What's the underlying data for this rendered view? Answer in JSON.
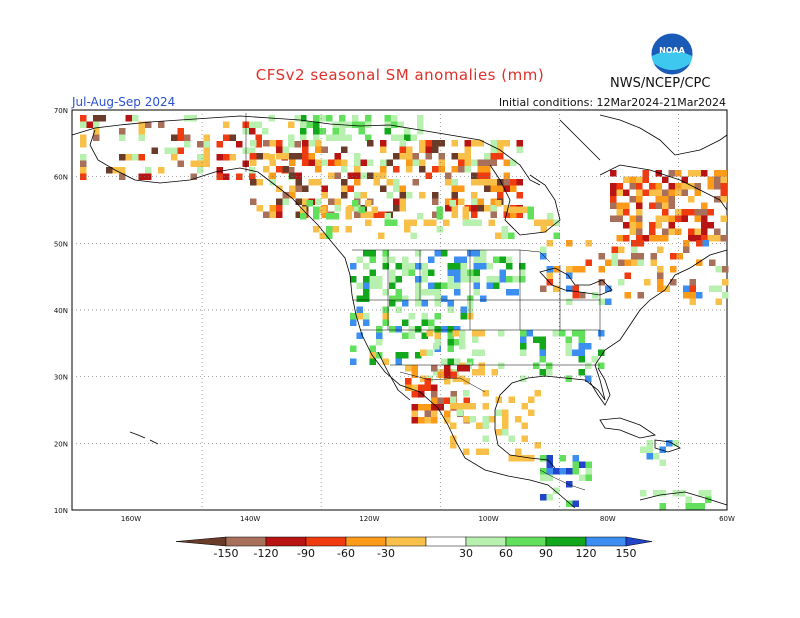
{
  "header": {
    "title": "CFSv2 seasonal SM anomalies (mm)",
    "org": "NWS/NCEP/CPC",
    "logo_text": "NOAA",
    "season": "Jul-Aug-Sep 2024",
    "initial_conditions": "Initial conditions: 12Mar2024-21Mar2024"
  },
  "axes": {
    "lat_labels": [
      "70N",
      "60N",
      "50N",
      "40N",
      "30N",
      "20N",
      "10N"
    ],
    "lon_labels": [
      "160W",
      "140W",
      "120W",
      "100W",
      "80W",
      "60W"
    ]
  },
  "legend": {
    "labels": [
      "-150",
      "-120",
      "-90",
      "-60",
      "-30",
      "30",
      "60",
      "90",
      "120",
      "150"
    ],
    "colors": [
      "#6b3b2a",
      "#a8705a",
      "#b81414",
      "#f03a10",
      "#fc9a1a",
      "#f8c048",
      "#ffffff",
      "#b8f0b0",
      "#62e05c",
      "#13a81c",
      "#3c8ef0",
      "#2244c8"
    ]
  },
  "colors": {
    "ocean": "#ffffff",
    "coast": "#000000",
    "grid": "#888888"
  }
}
